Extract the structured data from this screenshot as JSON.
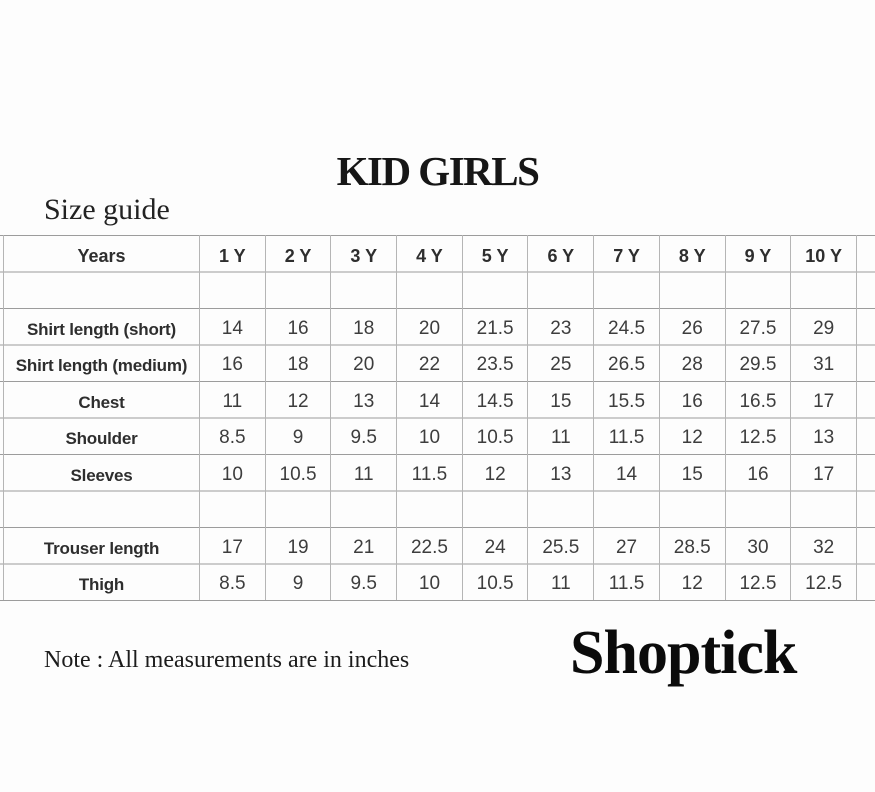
{
  "title": "KID GIRLS",
  "subtitle": "Size guide",
  "note": "Note : All measurements are in inches",
  "brand": "Shoptick",
  "colors": {
    "background": "#fdfdfd",
    "horizontal_gridline": "#9c9c9c",
    "vertical_gridline": "#b5b5b5",
    "header_text": "#2e2e2e",
    "value_text": "#3d3d3d",
    "title_text": "#161616"
  },
  "table": {
    "unit": "inches",
    "header": [
      "Years",
      "1 Y",
      "2 Y",
      "3 Y",
      "4 Y",
      "5 Y",
      "6 Y",
      "7 Y",
      "8 Y",
      "9 Y",
      "10 Y"
    ],
    "rows": [
      {
        "label": "",
        "values": [
          "",
          "",
          "",
          "",
          "",
          "",
          "",
          "",
          "",
          ""
        ]
      },
      {
        "label": "Shirt length (short)",
        "values": [
          "14",
          "16",
          "18",
          "20",
          "21.5",
          "23",
          "24.5",
          "26",
          "27.5",
          "29"
        ]
      },
      {
        "label": "Shirt length (medium)",
        "values": [
          "16",
          "18",
          "20",
          "22",
          "23.5",
          "25",
          "26.5",
          "28",
          "29.5",
          "31"
        ]
      },
      {
        "label": "Chest",
        "values": [
          "11",
          "12",
          "13",
          "14",
          "14.5",
          "15",
          "15.5",
          "16",
          "16.5",
          "17"
        ]
      },
      {
        "label": "Shoulder",
        "values": [
          "8.5",
          "9",
          "9.5",
          "10",
          "10.5",
          "11",
          "11.5",
          "12",
          "12.5",
          "13"
        ]
      },
      {
        "label": "Sleeves",
        "values": [
          "10",
          "10.5",
          "11",
          "11.5",
          "12",
          "13",
          "14",
          "15",
          "16",
          "17"
        ]
      },
      {
        "label": "",
        "values": [
          "",
          "",
          "",
          "",
          "",
          "",
          "",
          "",
          "",
          ""
        ]
      },
      {
        "label": "Trouser length",
        "values": [
          "17",
          "19",
          "21",
          "22.5",
          "24",
          "25.5",
          "27",
          "28.5",
          "30",
          "32"
        ]
      },
      {
        "label": "Thigh",
        "values": [
          "8.5",
          "9",
          "9.5",
          "10",
          "10.5",
          "11",
          "11.5",
          "12",
          "12.5",
          "12.5"
        ]
      }
    ]
  }
}
